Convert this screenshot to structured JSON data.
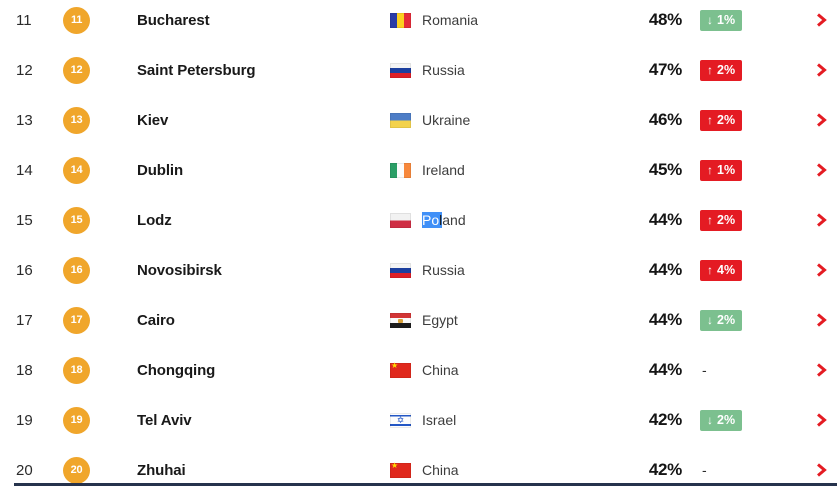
{
  "list": {
    "rows": [
      {
        "rank": "11",
        "city": "Bucharest",
        "country": "Romania",
        "flag": "ro",
        "value": "48%",
        "change": {
          "dir": "down",
          "label": "1%"
        }
      },
      {
        "rank": "12",
        "city": "Saint Petersburg",
        "country": "Russia",
        "flag": "ru",
        "value": "47%",
        "change": {
          "dir": "up",
          "label": "2%"
        }
      },
      {
        "rank": "13",
        "city": "Kiev",
        "country": "Ukraine",
        "flag": "ua",
        "value": "46%",
        "change": {
          "dir": "up",
          "label": "2%"
        }
      },
      {
        "rank": "14",
        "city": "Dublin",
        "country": "Ireland",
        "flag": "ie",
        "value": "45%",
        "change": {
          "dir": "up",
          "label": "1%"
        }
      },
      {
        "rank": "15",
        "city": "Lodz",
        "country": "Poland",
        "flag": "pl",
        "value": "44%",
        "change": {
          "dir": "up",
          "label": "2%"
        },
        "selection": {
          "selected": "Po",
          "edge": "l",
          "rest": "and"
        }
      },
      {
        "rank": "16",
        "city": "Novosibirsk",
        "country": "Russia",
        "flag": "ru",
        "value": "44%",
        "change": {
          "dir": "up",
          "label": "4%"
        }
      },
      {
        "rank": "17",
        "city": "Cairo",
        "country": "Egypt",
        "flag": "eg",
        "value": "44%",
        "change": {
          "dir": "down",
          "label": "2%"
        }
      },
      {
        "rank": "18",
        "city": "Chongqing",
        "country": "China",
        "flag": "cn",
        "value": "44%",
        "change": {
          "dir": "none",
          "label": "-"
        }
      },
      {
        "rank": "19",
        "city": "Tel Aviv",
        "country": "Israel",
        "flag": "il",
        "value": "42%",
        "change": {
          "dir": "down",
          "label": "2%"
        }
      },
      {
        "rank": "20",
        "city": "Zhuhai",
        "country": "China",
        "flag": "cn",
        "value": "42%",
        "change": {
          "dir": "none",
          "label": "-"
        }
      }
    ]
  },
  "icons": {
    "arrow_up": "↑",
    "arrow_down": "↓",
    "chevron_right": "chevron-right"
  },
  "colors": {
    "rank_badge": "#f0a62b",
    "increase_badge": "#e41b23",
    "decrease_badge": "#7cc08f",
    "chevron": "#e41b23",
    "text_selection": "#4090f7"
  }
}
